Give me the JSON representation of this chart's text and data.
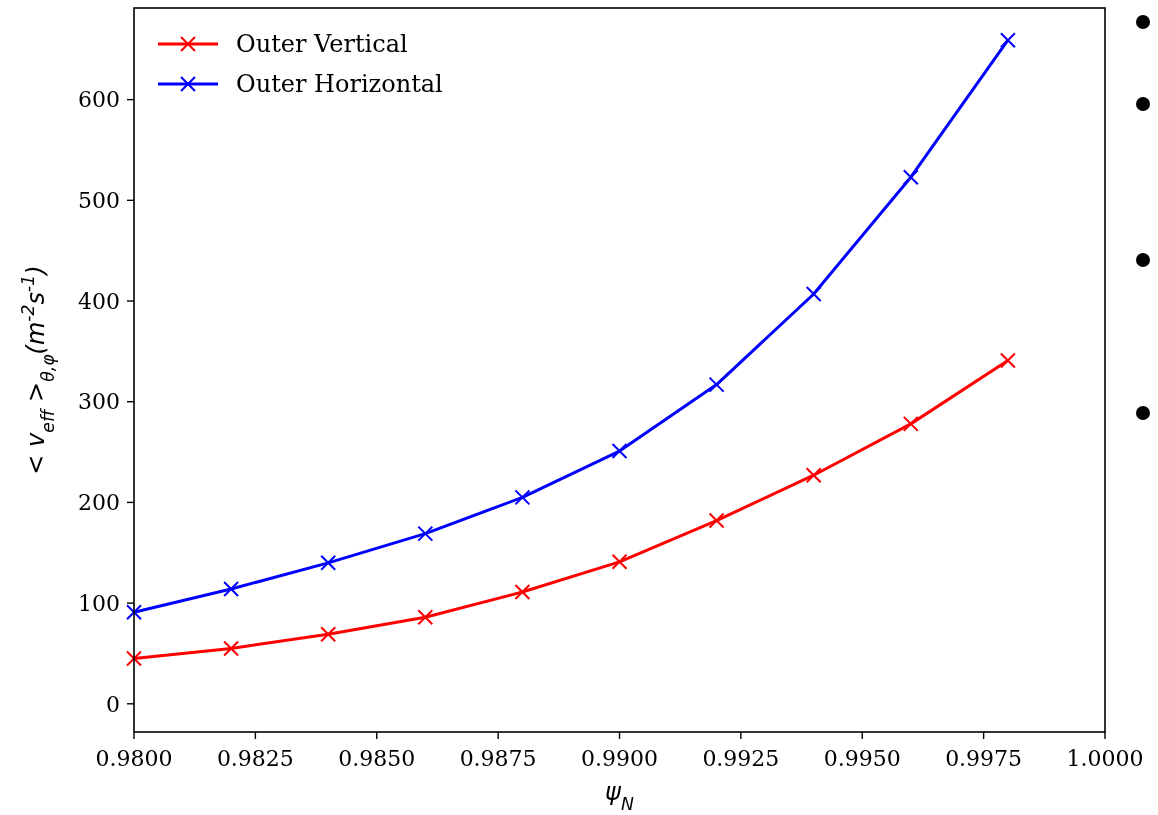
{
  "chart_data": {
    "type": "line",
    "xlabel": "ψ$_{N}$",
    "ylabel": "< v$_{eff}$ >$_{θ,φ}$(m$^{-2}$s$^{-1}$)",
    "x": [
      0.98,
      0.982,
      0.984,
      0.986,
      0.988,
      0.99,
      0.992,
      0.994,
      0.996,
      0.998
    ],
    "series": [
      {
        "name": "Outer Vertical",
        "color": "#ff0000",
        "values": [
          45,
          55,
          69,
          86,
          111,
          141,
          182,
          227,
          278,
          341
        ]
      },
      {
        "name": "Outer Horizontal",
        "color": "#0000ff",
        "values": [
          91,
          114,
          140,
          169,
          205,
          251,
          317,
          407,
          523,
          659
        ]
      }
    ],
    "xlim": [
      0.98,
      1.0
    ],
    "xticks": [
      {
        "value": 0.98,
        "label": "0.9800"
      },
      {
        "value": 0.9825,
        "label": "0.9825"
      },
      {
        "value": 0.985,
        "label": "0.9850"
      },
      {
        "value": 0.9875,
        "label": "0.9875"
      },
      {
        "value": 0.99,
        "label": "0.9900"
      },
      {
        "value": 0.9925,
        "label": "0.9925"
      },
      {
        "value": 0.995,
        "label": "0.9950"
      },
      {
        "value": 0.9975,
        "label": "0.9975"
      },
      {
        "value": 1.0,
        "label": "1.0000"
      }
    ],
    "ylim": [
      -28,
      691
    ],
    "yticks": [
      0,
      100,
      200,
      300,
      400,
      500,
      600
    ],
    "grid": false,
    "legend": "top left",
    "marker": "cross",
    "line_style": "solid"
  }
}
